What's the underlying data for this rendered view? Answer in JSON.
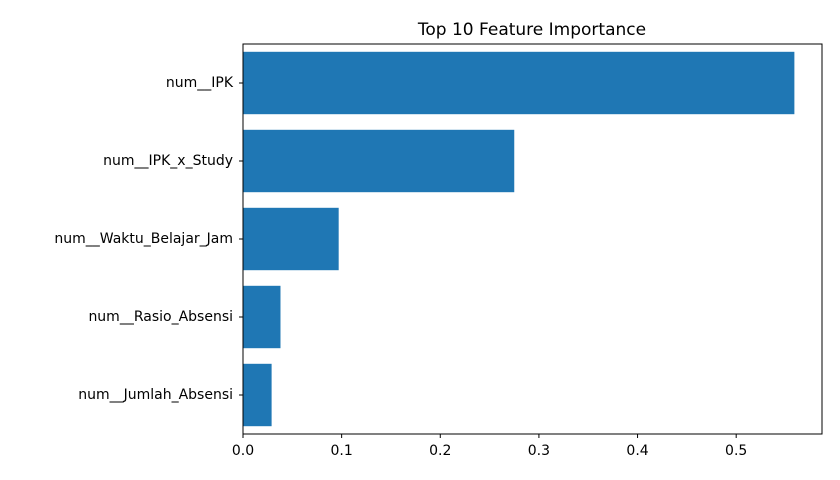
{
  "chart_data": {
    "type": "bar",
    "orientation": "horizontal",
    "title": "Top 10 Feature Importance",
    "xlabel": "",
    "ylabel": "",
    "categories": [
      "num__IPK",
      "num__IPK_x_Study",
      "num__Waktu_Belajar_Jam",
      "num__Rasio_Absensi",
      "num__Jumlah_Absensi"
    ],
    "values": [
      0.559,
      0.275,
      0.097,
      0.038,
      0.029
    ],
    "xlim": [
      0,
      0.587
    ],
    "xticks": [
      0.0,
      0.1,
      0.2,
      0.3,
      0.4,
      0.5
    ],
    "xtick_labels": [
      "0.0",
      "0.1",
      "0.2",
      "0.3",
      "0.4",
      "0.5"
    ],
    "bar_color": "#1f77b4",
    "grid": false
  }
}
